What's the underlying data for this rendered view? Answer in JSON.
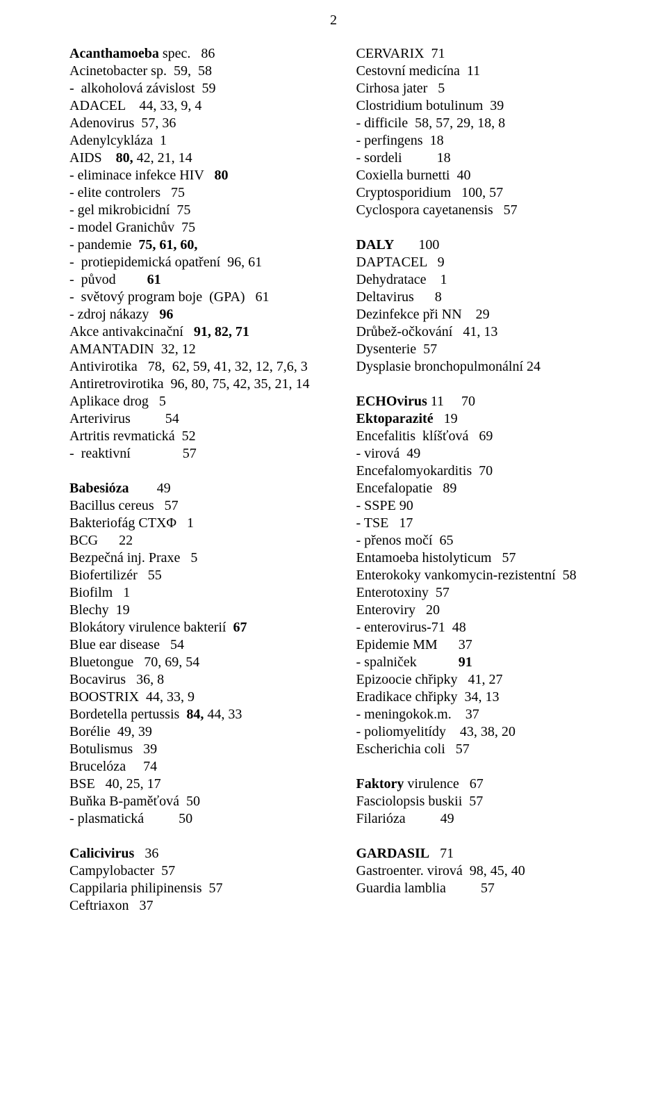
{
  "pageNumber": "2",
  "typography": {
    "font_family": "Times New Roman",
    "font_size_pt": 15,
    "line_height": 1.25,
    "text_color": "#000000",
    "background_color": "#ffffff"
  },
  "leftColumn": {
    "groups": [
      {
        "entries": [
          {
            "runs": [
              {
                "t": "Acanthamoeba",
                "b": true
              },
              {
                "t": " spec.   86"
              }
            ]
          },
          {
            "runs": [
              {
                "t": "Acinetobacter sp.  59,  58"
              }
            ]
          },
          {
            "runs": [
              {
                "t": "-  alkoholová závislost  59"
              }
            ]
          },
          {
            "runs": [
              {
                "t": "ADACEL    44, 33, 9, 4"
              }
            ]
          },
          {
            "runs": [
              {
                "t": "Adenovirus  57, 36"
              }
            ]
          },
          {
            "runs": [
              {
                "t": "Adenylcykláza  1"
              }
            ]
          },
          {
            "runs": [
              {
                "t": "AIDS    "
              },
              {
                "t": "80,",
                "b": true
              },
              {
                "t": " 42, 21, 14"
              }
            ]
          },
          {
            "runs": [
              {
                "t": "- eliminace infekce HIV   "
              },
              {
                "t": "80",
                "b": true
              }
            ]
          },
          {
            "runs": [
              {
                "t": "- elite controlers   75"
              }
            ]
          },
          {
            "runs": [
              {
                "t": "- gel mikrobicidní  75"
              }
            ]
          },
          {
            "runs": [
              {
                "t": "- model Granichův  75"
              }
            ]
          },
          {
            "runs": [
              {
                "t": "- pandemie  "
              },
              {
                "t": "75, 61, 60,",
                "b": true
              }
            ]
          },
          {
            "runs": [
              {
                "t": "-  protiepidemická opatření  96, 61"
              }
            ]
          },
          {
            "runs": [
              {
                "t": "-  původ         "
              },
              {
                "t": "61",
                "b": true
              }
            ]
          },
          {
            "runs": [
              {
                "t": "-  světový program boje  (GPA)   61"
              }
            ]
          },
          {
            "runs": [
              {
                "t": "- zdroj nákazy   "
              },
              {
                "t": "96",
                "b": true
              }
            ]
          },
          {
            "runs": [
              {
                "t": "Akce antivakcinační   "
              },
              {
                "t": "91, 82, 71",
                "b": true
              }
            ]
          },
          {
            "runs": [
              {
                "t": "AMANTADIN  32, 12"
              }
            ]
          },
          {
            "runs": [
              {
                "t": "Antivirotika   78,  62, 59, 41, 32, 12, 7,6, 3"
              }
            ]
          },
          {
            "runs": [
              {
                "t": "Antiretrovirotika  96, 80, 75, 42, 35, 21, 14"
              }
            ]
          },
          {
            "runs": [
              {
                "t": "Aplikace drog   5    "
              }
            ]
          },
          {
            "runs": [
              {
                "t": "Arterivirus          54"
              }
            ]
          },
          {
            "runs": [
              {
                "t": "Artritis revmatická  52"
              }
            ]
          },
          {
            "runs": [
              {
                "t": "-  reaktivní               57"
              }
            ]
          }
        ]
      },
      {
        "entries": [
          {
            "runs": [
              {
                "t": "Babesióza",
                "b": true
              },
              {
                "t": "        49      "
              }
            ]
          },
          {
            "runs": [
              {
                "t": "Bacillus cereus   57"
              }
            ]
          },
          {
            "runs": [
              {
                "t": "Bakteriofág CTXΦ   1      "
              }
            ]
          },
          {
            "runs": [
              {
                "t": "BCG      22"
              }
            ]
          },
          {
            "runs": [
              {
                "t": "Bezpečná inj. Praxe   5"
              }
            ]
          },
          {
            "runs": [
              {
                "t": "Biofertilizér   55"
              }
            ]
          },
          {
            "runs": [
              {
                "t": "Biofilm   1"
              }
            ]
          },
          {
            "runs": [
              {
                "t": "Blechy  19"
              }
            ]
          },
          {
            "runs": [
              {
                "t": "Blokátory virulence bakterií  "
              },
              {
                "t": "67",
                "b": true
              }
            ]
          },
          {
            "runs": [
              {
                "t": "Blue ear disease   54"
              }
            ]
          },
          {
            "runs": [
              {
                "t": "Bluetongue   70, 69, 54"
              }
            ]
          },
          {
            "runs": [
              {
                "t": "Bocavirus   36, 8"
              }
            ]
          },
          {
            "runs": [
              {
                "t": "BOOSTRIX  44, 33, 9"
              }
            ]
          },
          {
            "runs": [
              {
                "t": "Bordetella pertussis  "
              },
              {
                "t": "84,",
                "b": true
              },
              {
                "t": " 44, 33"
              }
            ]
          },
          {
            "runs": [
              {
                "t": "Borélie  49, 39"
              }
            ]
          },
          {
            "runs": [
              {
                "t": "Botulismus   39 "
              }
            ]
          },
          {
            "runs": [
              {
                "t": "Brucelóza     74"
              }
            ]
          },
          {
            "runs": [
              {
                "t": "BSE   40, 25, 17"
              }
            ]
          },
          {
            "runs": [
              {
                "t": "Buňka B-paměťová  50"
              }
            ]
          },
          {
            "runs": [
              {
                "t": "- plasmatická          50"
              }
            ]
          }
        ]
      },
      {
        "entries": [
          {
            "runs": [
              {
                "t": "Calicivirus",
                "b": true
              },
              {
                "t": "   36"
              }
            ]
          },
          {
            "runs": [
              {
                "t": "Campylobacter  57"
              }
            ]
          },
          {
            "runs": [
              {
                "t": "Cappilaria philipinensis  57"
              }
            ]
          },
          {
            "runs": [
              {
                "t": "Ceftriaxon   37"
              }
            ]
          }
        ]
      }
    ]
  },
  "rightColumn": {
    "groups": [
      {
        "entries": [
          {
            "runs": [
              {
                "t": "CERVARIX  71"
              }
            ]
          },
          {
            "runs": [
              {
                "t": "Cestovní medicína  11"
              }
            ]
          },
          {
            "runs": [
              {
                "t": "Cirhosa jater   5"
              }
            ]
          },
          {
            "runs": [
              {
                "t": "Clostridium botulinum  39"
              }
            ]
          },
          {
            "runs": [
              {
                "t": "- difficile  58, 57, 29, 18, 8"
              }
            ]
          },
          {
            "runs": [
              {
                "t": "- perfingens  18"
              }
            ]
          },
          {
            "runs": [
              {
                "t": "- sordeli          18 "
              }
            ]
          },
          {
            "runs": [
              {
                "t": "Coxiella burnetti  40"
              }
            ]
          },
          {
            "runs": [
              {
                "t": "Cryptosporidium   100, 57"
              }
            ]
          },
          {
            "runs": [
              {
                "t": "Cyclospora cayetanensis   57"
              }
            ]
          }
        ]
      },
      {
        "entries": [
          {
            "runs": [
              {
                "t": "DALY",
                "b": true
              },
              {
                "t": "       100"
              }
            ]
          },
          {
            "runs": [
              {
                "t": "DAPTACEL   9           "
              }
            ]
          },
          {
            "runs": [
              {
                "t": "Dehydratace    1"
              }
            ]
          },
          {
            "runs": [
              {
                "t": "Deltavirus      8"
              }
            ]
          },
          {
            "runs": [
              {
                "t": "Dezinfekce při NN    29"
              }
            ]
          },
          {
            "runs": [
              {
                "t": "Drůbež-očkování   41, 13"
              }
            ]
          },
          {
            "runs": [
              {
                "t": "Dysenterie  57"
              }
            ]
          },
          {
            "runs": [
              {
                "t": "Dysplasie bronchopulmonální 24"
              }
            ]
          }
        ]
      },
      {
        "entries": [
          {
            "runs": [
              {
                "t": "ECHOvirus",
                "b": true
              },
              {
                "t": " 11     70"
              }
            ]
          },
          {
            "runs": [
              {
                "t": "Ektoparazité",
                "b": true
              },
              {
                "t": "   19"
              }
            ]
          },
          {
            "runs": [
              {
                "t": "Encefalitis  klíšťová   69"
              }
            ]
          },
          {
            "runs": [
              {
                "t": "- virová  49"
              }
            ]
          },
          {
            "runs": [
              {
                "t": "Encefalomyokarditis  70"
              }
            ]
          },
          {
            "runs": [
              {
                "t": "Encefalopatie   89"
              }
            ]
          },
          {
            "runs": [
              {
                "t": "- SSPE 90"
              }
            ]
          },
          {
            "runs": [
              {
                "t": "- TSE   17"
              }
            ]
          },
          {
            "runs": [
              {
                "t": "- přenos močí  65"
              }
            ]
          },
          {
            "runs": [
              {
                "t": "Entamoeba histolyticum   57  "
              }
            ]
          },
          {
            "runs": [
              {
                "t": "Enterokoky vankomycin-rezistentní  58"
              }
            ]
          },
          {
            "runs": [
              {
                "t": "Enterotoxiny  57"
              }
            ]
          },
          {
            "runs": [
              {
                "t": "Enteroviry   20"
              }
            ]
          },
          {
            "runs": [
              {
                "t": "- enterovirus-71  48"
              }
            ]
          },
          {
            "runs": [
              {
                "t": "Epidemie MM      37"
              }
            ]
          },
          {
            "runs": [
              {
                "t": "- spalniček            "
              },
              {
                "t": "91",
                "b": true
              }
            ]
          },
          {
            "runs": [
              {
                "t": "Epizoocie chřipky   41, 27"
              }
            ]
          },
          {
            "runs": [
              {
                "t": "Eradikace chřipky  34, 13 "
              }
            ]
          },
          {
            "runs": [
              {
                "t": "- meningokok.m.    37"
              }
            ]
          },
          {
            "runs": [
              {
                "t": "- poliomyelitídy    43, 38, 20"
              }
            ]
          },
          {
            "runs": [
              {
                "t": "Escherichia coli   57"
              }
            ]
          }
        ]
      },
      {
        "entries": [
          {
            "runs": [
              {
                "t": "Faktory",
                "b": true
              },
              {
                "t": " virulence   67"
              }
            ]
          },
          {
            "runs": [
              {
                "t": "Fasciolopsis buskii  57"
              }
            ]
          },
          {
            "runs": [
              {
                "t": "Filarióza          49"
              }
            ]
          }
        ]
      },
      {
        "entries": [
          {
            "runs": [
              {
                "t": "GARDASIL",
                "b": true
              },
              {
                "t": "   71"
              }
            ]
          },
          {
            "runs": [
              {
                "t": "Gastroenter. virová  98, 45, 40"
              }
            ]
          },
          {
            "runs": [
              {
                "t": "Guardia lamblia          57"
              }
            ]
          }
        ]
      }
    ]
  }
}
